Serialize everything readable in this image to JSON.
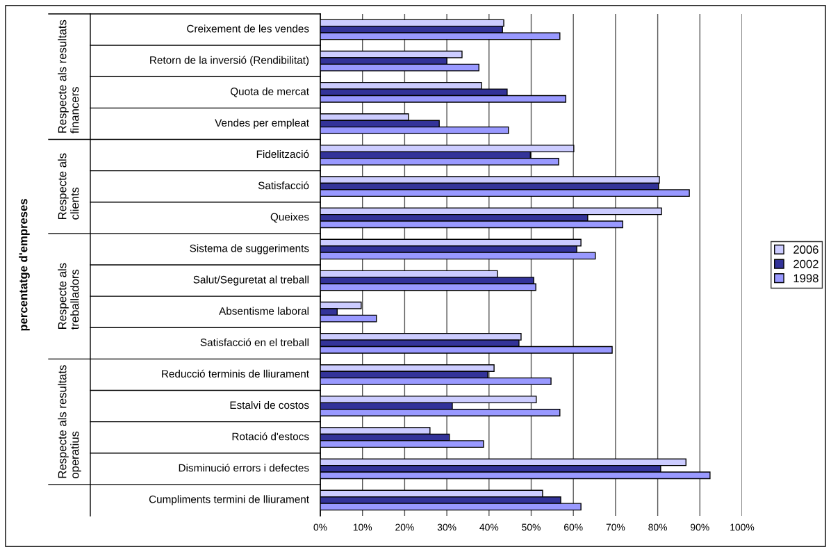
{
  "chart_data": {
    "type": "bar",
    "orientation": "horizontal",
    "categories": [
      "Creixement de les vendes",
      "Retorn de la inversió (Rendibilitat)",
      "Quota de mercat",
      "Vendes per empleat",
      "Fidelització",
      "Satisfacció",
      "Queixes",
      "Sistema de suggeriments",
      "Salut/Seguretat al treball",
      "Absentisme laboral",
      "Satisfacció en el treball",
      "Reducció terminis de lliurament",
      "Estalvi de costos",
      "Rotació d'estocs",
      "Disminució errors i defectes",
      "Cumpliments termini de lliurament"
    ],
    "series": [
      {
        "name": "2006",
        "color": "#ccccff",
        "values": [
          43.5,
          33.6,
          38.2,
          20.9,
          60.1,
          80.4,
          80.9,
          61.8,
          42.0,
          9.7,
          47.6,
          41.2,
          51.2,
          26.0,
          86.7,
          52.7
        ]
      },
      {
        "name": "2002",
        "color": "#333399",
        "values": [
          43.2,
          30.0,
          44.3,
          28.2,
          49.8,
          80.2,
          63.4,
          60.8,
          50.6,
          4.0,
          47.1,
          39.7,
          31.3,
          30.6,
          80.7,
          57.0
        ]
      },
      {
        "name": "1998",
        "color": "#9999ff",
        "values": [
          56.8,
          37.6,
          58.2,
          44.6,
          56.5,
          87.5,
          71.7,
          65.2,
          51.1,
          13.3,
          69.2,
          54.7,
          56.8,
          38.7,
          92.4,
          61.8
        ]
      }
    ],
    "xlim": [
      0,
      100
    ],
    "xticks": [
      {
        "value": 0,
        "label": "0%"
      },
      {
        "value": 10,
        "label": "10%"
      },
      {
        "value": 20,
        "label": "20%"
      },
      {
        "value": 30,
        "label": "30%"
      },
      {
        "value": 40,
        "label": "40%"
      },
      {
        "value": 50,
        "label": "50%"
      },
      {
        "value": 60,
        "label": "60%"
      },
      {
        "value": 70,
        "label": "70%"
      },
      {
        "value": 80,
        "label": "80%"
      },
      {
        "value": 90,
        "label": "90%"
      },
      {
        "value": 100,
        "label": "100%"
      }
    ],
    "annotations": [
      "percentatge d'empreses",
      "Respecte als resultats financers",
      "Respecte als clients",
      "Respecte als treballadors",
      "Respecte als resultats operatius"
    ],
    "grid": "x",
    "legend": "right"
  }
}
